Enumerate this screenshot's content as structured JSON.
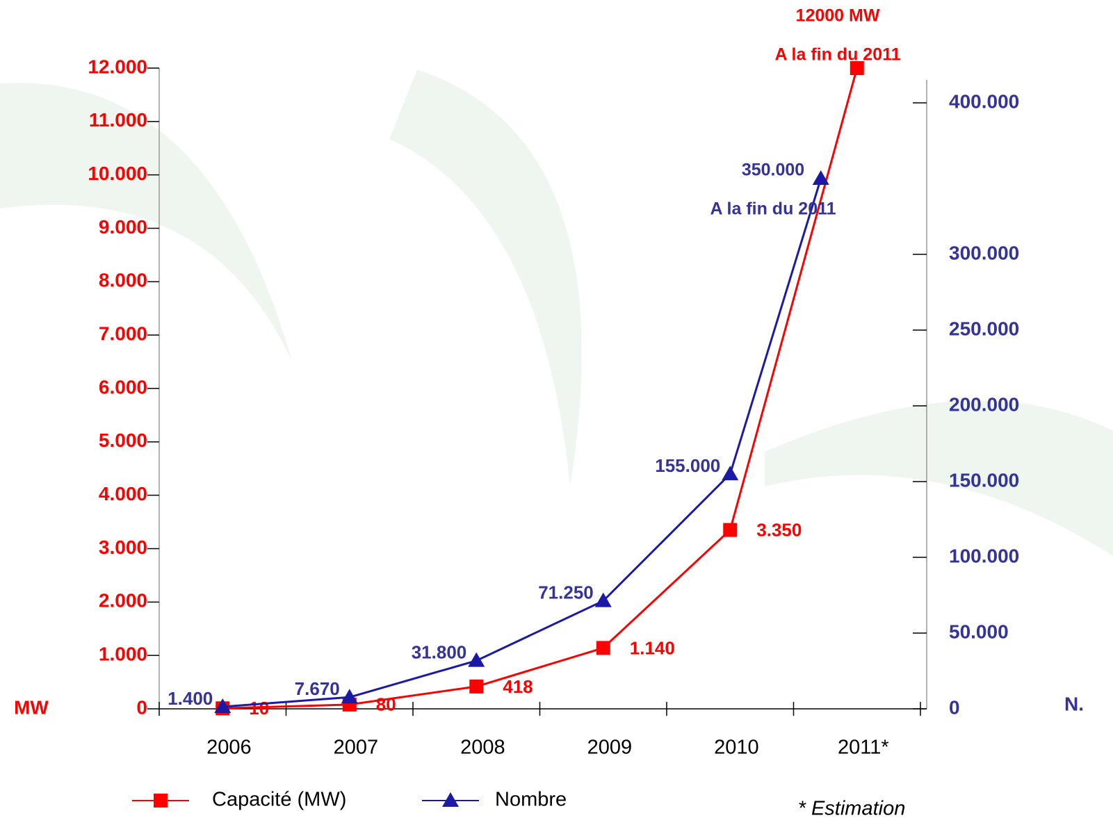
{
  "chart_data": {
    "type": "line",
    "categories": [
      "2006",
      "2007",
      "2008",
      "2009",
      "2010",
      "2011*"
    ],
    "series": [
      {
        "name": "Capacité (MW)",
        "color": "#ff0000",
        "marker": "square",
        "values": [
          10,
          80,
          418,
          1140,
          3350,
          12000
        ],
        "value_labels": [
          "10",
          "80",
          "418",
          "1.140",
          "3.350",
          null
        ]
      },
      {
        "name": "Nombre",
        "color": "#1a1aa6",
        "marker": "triangle",
        "axis": "y2",
        "values": [
          1400,
          7670,
          31800,
          71250,
          155000,
          350000
        ],
        "value_labels": [
          "1.400",
          "7.670",
          "31.800",
          "71.250",
          "155.000",
          null
        ]
      }
    ],
    "ylabel": "MW",
    "y2label": "N.",
    "ylim": [
      0,
      12000
    ],
    "yticks": [
      0,
      {
        "value": 1000,
        "label": "1.000"
      },
      {
        "value": 2000,
        "label": "2.000"
      },
      {
        "value": 3000,
        "label": "3.000"
      },
      {
        "value": 4000,
        "label": "4.000"
      },
      {
        "value": 5000,
        "label": "5.000"
      },
      {
        "value": 6000,
        "label": "6.000"
      },
      {
        "value": 7000,
        "label": "7.000"
      },
      {
        "value": 8000,
        "label": "8.000"
      },
      {
        "value": 9000,
        "label": "9.000"
      },
      {
        "value": 10000,
        "label": "10.000"
      },
      {
        "value": 11000,
        "label": "11.000"
      },
      {
        "value": 12000,
        "label": "12.000"
      }
    ],
    "y2lim": [
      0,
      400000
    ],
    "y2ticks": [
      0,
      {
        "value": 50000,
        "label": "50.000"
      },
      {
        "value": 100000,
        "label": "100.000"
      },
      {
        "value": 150000,
        "label": "150.000"
      },
      {
        "value": 200000,
        "label": "200.000"
      },
      {
        "value": 250000,
        "label": "250.000"
      },
      {
        "value": 300000,
        "label": "300.000"
      },
      {
        "value": 400000,
        "label": "400.000"
      }
    ],
    "annotations": [
      {
        "text": "12000 MW",
        "series": 0
      },
      {
        "text": "A la fin du 2011",
        "series": 0
      },
      {
        "text": "350.000",
        "series": 1
      },
      {
        "text": "A la fin du 2011",
        "series": 1
      }
    ],
    "footnote": "* Estimation",
    "legend": "bottom-left"
  }
}
